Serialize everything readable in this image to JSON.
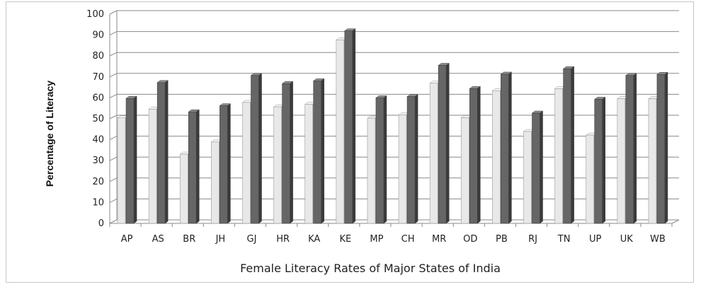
{
  "chart_data": {
    "type": "bar",
    "categories": [
      "AP",
      "AS",
      "BR",
      "JH",
      "GJ",
      "HR",
      "KA",
      "KE",
      "MP",
      "CH",
      "MR",
      "OD",
      "PB",
      "RJ",
      "TN",
      "UP",
      "UK",
      "WB"
    ],
    "series": [
      {
        "color": "#e8e8e8",
        "values": [
          50.4,
          54.6,
          33.1,
          38.9,
          57.8,
          55.7,
          56.9,
          87.7,
          50.3,
          51.9,
          67.0,
          50.5,
          63.4,
          43.9,
          64.4,
          42.2,
          59.6,
          59.6
        ]
      },
      {
        "color": "#666666",
        "values": [
          59.7,
          67.3,
          53.3,
          56.2,
          70.7,
          66.8,
          68.1,
          92.0,
          60.0,
          60.6,
          75.5,
          64.4,
          71.3,
          52.7,
          73.9,
          59.3,
          70.7,
          71.2
        ]
      }
    ],
    "xlabel": "Female Literacy Rates of Major States of India",
    "ylabel": "Percentage of Literacy",
    "ylim": [
      0,
      100
    ],
    "yticks": [
      0,
      10,
      20,
      30,
      40,
      50,
      60,
      70,
      80,
      90,
      100
    ],
    "grid": true
  }
}
